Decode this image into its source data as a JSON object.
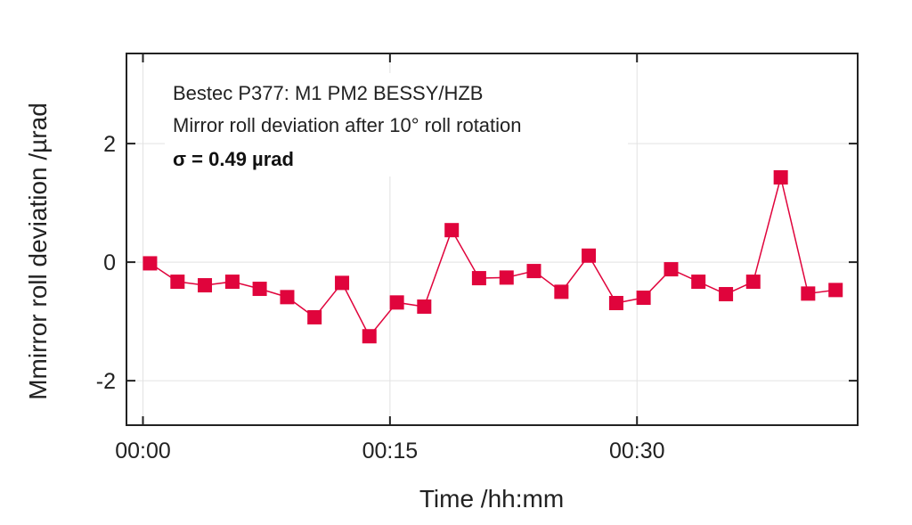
{
  "chart_data": {
    "type": "line",
    "title": "",
    "xlabel": "Time /hh:mm",
    "ylabel": "Mmirror roll deviation /µrad",
    "xlim": [
      -1.0,
      43.4
    ],
    "ylim": [
      -2.75,
      3.52
    ],
    "x_unit": "minutes",
    "xticks": [
      {
        "value": 0,
        "label": "00:00"
      },
      {
        "value": 15,
        "label": "00:15"
      },
      {
        "value": 30,
        "label": "00:30"
      }
    ],
    "yticks": [
      {
        "value": 2,
        "label": "2"
      },
      {
        "value": 0,
        "label": "0"
      },
      {
        "value": -2,
        "label": "-2"
      }
    ],
    "grid": true,
    "annotations": [
      "Bestec P377: M1 PM2 BESSY/HZB",
      "Mirror roll deviation after 10° roll rotation",
      "σ = 0.49 µrad"
    ],
    "series": [
      {
        "name": "Mirror roll deviation",
        "color": "#e0043c",
        "marker": "square",
        "x": [
          0.43,
          2.1,
          3.76,
          5.43,
          7.09,
          8.76,
          10.42,
          12.09,
          13.75,
          15.42,
          17.08,
          18.75,
          20.41,
          22.08,
          23.74,
          25.41,
          27.07,
          28.74,
          30.4,
          32.07,
          33.73,
          35.4,
          37.06,
          38.73,
          40.39,
          42.06
        ],
        "y": [
          -0.02,
          -0.33,
          -0.39,
          -0.33,
          -0.45,
          -0.59,
          -0.93,
          -0.35,
          -1.25,
          -0.68,
          -0.75,
          0.54,
          -0.27,
          -0.26,
          -0.15,
          -0.5,
          0.11,
          -0.69,
          -0.6,
          -0.12,
          -0.33,
          -0.54,
          -0.33,
          1.43,
          -0.53,
          -0.47
        ]
      }
    ]
  }
}
